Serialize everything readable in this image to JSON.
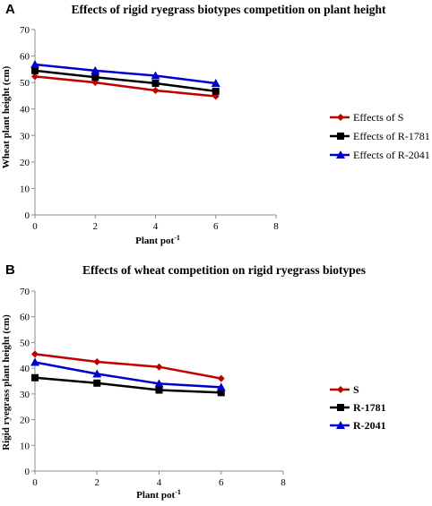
{
  "chart_data": [
    {
      "panel": "A",
      "type": "line",
      "title": "Effects of rigid ryegrass biotypes competition on plant height",
      "xlabel": "Plant pot",
      "xlabel_sup": "-1",
      "ylabel": "Wheat  plant height (cm)",
      "xlim": [
        0,
        8
      ],
      "ylim": [
        0,
        70
      ],
      "x_ticks": [
        0,
        2,
        4,
        6,
        8
      ],
      "y_ticks": [
        0,
        10,
        20,
        30,
        40,
        50,
        60,
        70
      ],
      "x": [
        0,
        2,
        4,
        6
      ],
      "legend_position": "right",
      "legend_bold": false,
      "grid": false,
      "series": [
        {
          "name": "Effects of S",
          "color": "#c00000",
          "marker": "diamond",
          "values": [
            52.3,
            50,
            47,
            44.8
          ]
        },
        {
          "name": "Effects of R-1781",
          "color": "#000000",
          "marker": "square",
          "values": [
            54.5,
            52,
            49.7,
            46.7
          ]
        },
        {
          "name": "Effects of R-2041",
          "color": "#0000cc",
          "marker": "triangle",
          "values": [
            56.8,
            54.5,
            52.6,
            49.7
          ]
        }
      ]
    },
    {
      "panel": "B",
      "type": "line",
      "title": "Effects of wheat competition on rigid ryegrass biotypes",
      "xlabel": "Plant pot",
      "xlabel_sup": "-1",
      "ylabel": "Rigid ryegrass plant height (cm)",
      "xlim": [
        0,
        8
      ],
      "ylim": [
        0,
        70
      ],
      "x_ticks": [
        0,
        2,
        4,
        6,
        8
      ],
      "y_ticks": [
        0,
        10,
        20,
        30,
        40,
        50,
        60,
        70
      ],
      "x": [
        0,
        2,
        4,
        6
      ],
      "legend_position": "right",
      "legend_bold": true,
      "grid": false,
      "series": [
        {
          "name": "S",
          "color": "#c00000",
          "marker": "diamond",
          "values": [
            45.5,
            42.5,
            40.5,
            36
          ]
        },
        {
          "name": "R-1781",
          "color": "#000000",
          "marker": "square",
          "values": [
            36.3,
            34.2,
            31.5,
            30.5
          ]
        },
        {
          "name": "R-2041",
          "color": "#0000cc",
          "marker": "triangle",
          "values": [
            42.3,
            37.8,
            34,
            32.6
          ]
        }
      ]
    }
  ]
}
